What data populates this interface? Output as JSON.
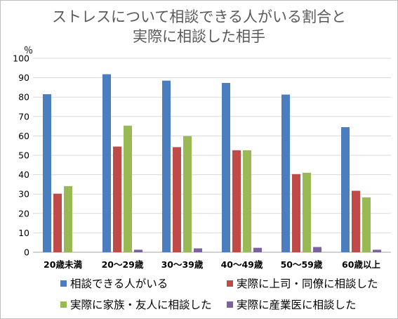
{
  "chart_data": {
    "type": "bar",
    "title_lines": [
      "ストレスについて相談できる人がいる割合と",
      "実際に相談した相手"
    ],
    "ylabel": "％",
    "ylim": [
      0,
      100
    ],
    "yticks": [
      0,
      10,
      20,
      30,
      40,
      50,
      60,
      70,
      80,
      90,
      100
    ],
    "grid": true,
    "legend_position": "bottom",
    "categories": [
      "20歳未満",
      "20～29歳",
      "30～39歳",
      "40～49歳",
      "50～59歳",
      "60歳以上"
    ],
    "series": [
      {
        "name": "相談できる人がいる",
        "color": "#4a7ebf",
        "values": [
          81.5,
          91.8,
          88.5,
          87.3,
          81.3,
          64.5
        ]
      },
      {
        "name": "実際に上司・同僚に相談した",
        "color": "#be4b48",
        "values": [
          30.2,
          54.5,
          54.2,
          52.6,
          40.3,
          31.7
        ]
      },
      {
        "name": "実際に家族・友人に相談した",
        "color": "#98b954",
        "values": [
          34.1,
          65.3,
          59.9,
          52.6,
          41.0,
          28.3
        ]
      },
      {
        "name": "実際に産業医に相談した",
        "color": "#7d60a0",
        "values": [
          0,
          1.3,
          2.0,
          2.3,
          2.7,
          1.3
        ]
      }
    ]
  }
}
